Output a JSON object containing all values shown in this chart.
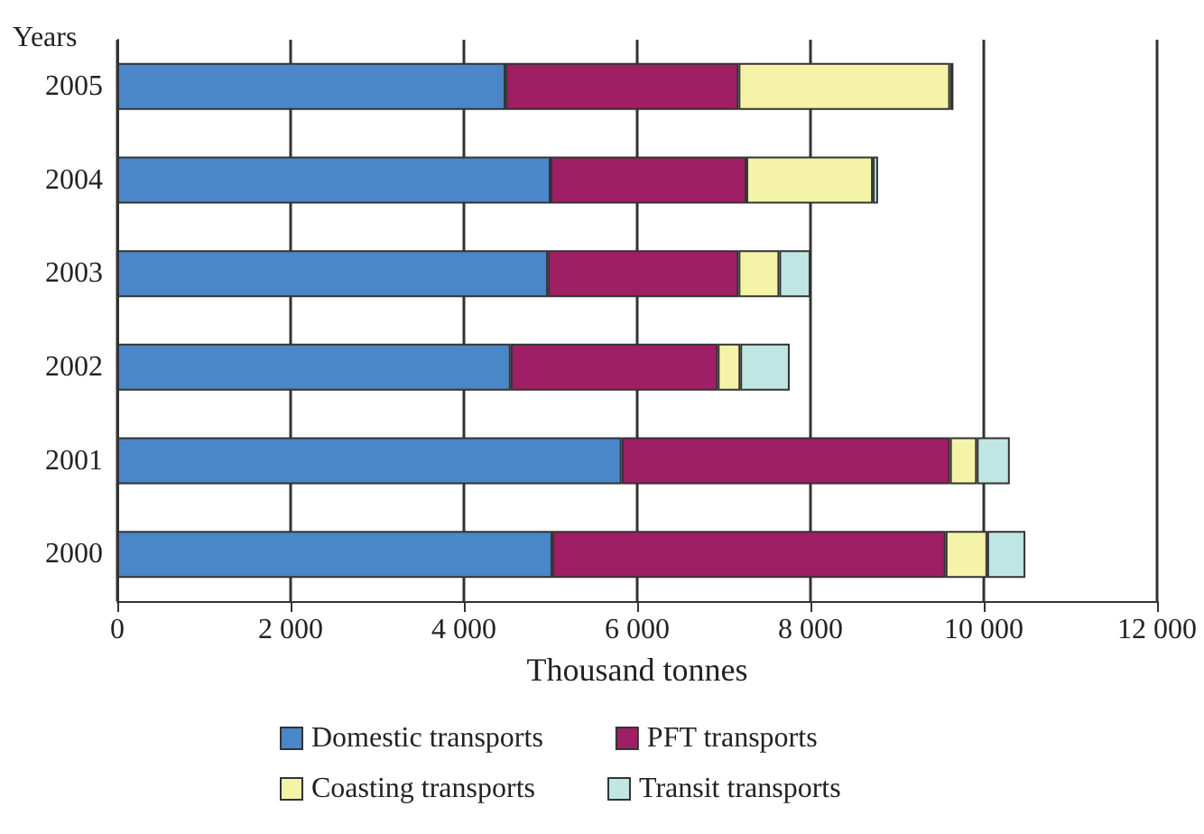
{
  "chart_data": {
    "type": "bar",
    "orientation": "horizontal",
    "stacked": true,
    "xlabel": "Thousand tonnes",
    "ylabel": "Years",
    "categories": [
      "2005",
      "2004",
      "2003",
      "2002",
      "2001",
      "2000"
    ],
    "series": [
      {
        "name": "Domestic transports",
        "color": "#4a86c8",
        "values": [
          4480,
          5000,
          4970,
          4540,
          5820,
          5020
        ]
      },
      {
        "name": "PFT transports",
        "color": "#9e1f63",
        "values": [
          2690,
          2260,
          2200,
          2390,
          3790,
          4540
        ]
      },
      {
        "name": "Coasting transports",
        "color": "#f4f3a8",
        "values": [
          2440,
          1460,
          470,
          260,
          310,
          480
        ]
      },
      {
        "name": "Transit transports",
        "color": "#bfe6e3",
        "values": [
          40,
          60,
          360,
          570,
          380,
          440
        ]
      }
    ],
    "xlim": [
      0,
      12000
    ],
    "xticks": [
      {
        "value": 0,
        "label": "0"
      },
      {
        "value": 2000,
        "label": "2 000"
      },
      {
        "value": 4000,
        "label": "4 000"
      },
      {
        "value": 6000,
        "label": "6 000"
      },
      {
        "value": 8000,
        "label": "8 000"
      },
      {
        "value": 10000,
        "label": "10 000"
      },
      {
        "value": 12000,
        "label": "12 000"
      }
    ],
    "grid": "x",
    "legend": "bottom"
  }
}
